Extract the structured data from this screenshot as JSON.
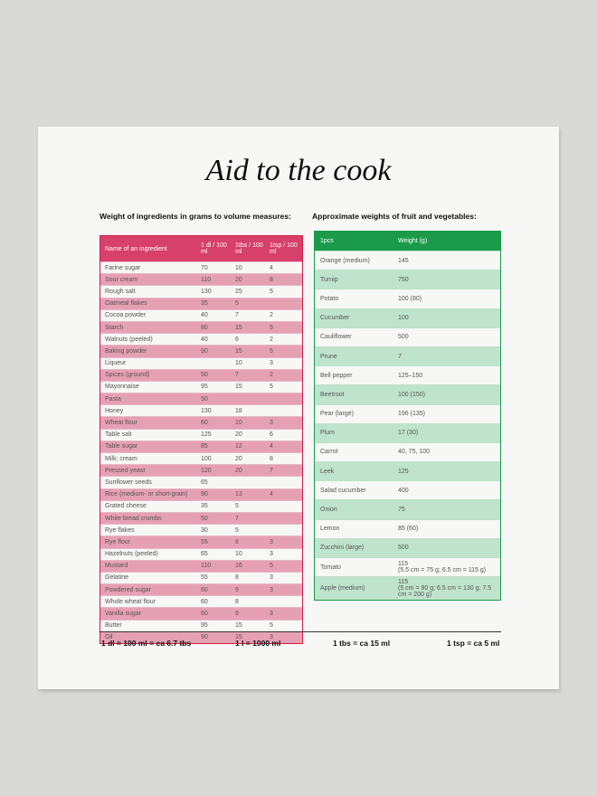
{
  "title": "Aid to the cook",
  "left": {
    "heading": "Weight of ingredients in grams to volume measures:",
    "columns": [
      "Name of an ingredient",
      "1 dl / 100 ml",
      "1tbs / 100 ml",
      "1tsp / 100 ml"
    ],
    "rows": [
      [
        "Farine sugar",
        "70",
        "10",
        "4"
      ],
      [
        "Sour cream",
        "110",
        "20",
        "8"
      ],
      [
        "Rough salt",
        "130",
        "25",
        "5"
      ],
      [
        "Oatmeal flakes",
        "35",
        "5",
        null
      ],
      [
        "Cocoa powder",
        "40",
        "7",
        "2"
      ],
      [
        "Starch",
        "80",
        "15",
        "5"
      ],
      [
        "Walnuts (peeled)",
        "40",
        "6",
        "2"
      ],
      [
        "Baking powder",
        "90",
        "15",
        "5"
      ],
      [
        "Liqueur",
        null,
        "10",
        "3"
      ],
      [
        "Spices (ground)",
        "50",
        "7",
        "2"
      ],
      [
        "Mayonnaise",
        "95",
        "15",
        "5"
      ],
      [
        "Pasta",
        "50",
        null,
        null
      ],
      [
        "Honey",
        "130",
        "18",
        null
      ],
      [
        "Wheat flour",
        "60",
        "10",
        "3"
      ],
      [
        "Table salt",
        "125",
        "20",
        "6"
      ],
      [
        "Table sugar",
        "85",
        "12",
        "4"
      ],
      [
        "Milk; cream",
        "100",
        "20",
        "8"
      ],
      [
        "Pressed yeast",
        "120",
        "20",
        "7"
      ],
      [
        "Sunflower seeds",
        "65",
        null,
        null
      ],
      [
        "Rice (medium- or short-grain)",
        "90",
        "13",
        "4"
      ],
      [
        "Grated cheese",
        "35",
        "5",
        null
      ],
      [
        "White bread crumbs",
        "50",
        "7",
        null
      ],
      [
        "Rye flakes",
        "30",
        "5",
        null
      ],
      [
        "Rye flour",
        "55",
        "8",
        "3"
      ],
      [
        "Hazelnuts (peeled)",
        "65",
        "10",
        "3"
      ],
      [
        "Mustard",
        "110",
        "16",
        "5"
      ],
      [
        "Gelatine",
        "55",
        "8",
        "3"
      ],
      [
        "Powdered sugar",
        "60",
        "9",
        "3"
      ],
      [
        "Whole wheat flour",
        "60",
        "8",
        null
      ],
      [
        "Vanilla sugar",
        "60",
        "9",
        "3"
      ],
      [
        "Butter",
        "95",
        "15",
        "5"
      ],
      [
        "Oil",
        "90",
        "15",
        "3"
      ]
    ]
  },
  "right": {
    "heading": "Approximate weights of fruit and vegetables:",
    "columns": [
      "1pcs",
      "Weight (g)"
    ],
    "rows": [
      {
        "name": "Orange (medium)",
        "weight": "145"
      },
      {
        "name": "Turnip",
        "weight": "750"
      },
      {
        "name": "Potato",
        "weight": "100 (80)"
      },
      {
        "name": "Cucumber",
        "weight": "100"
      },
      {
        "name": "Cauliflower",
        "weight": "500"
      },
      {
        "name": "Prune",
        "weight": "7"
      },
      {
        "name": "Bell pepper",
        "weight": "125–150"
      },
      {
        "name": "Beetroot",
        "weight": "100 (150)"
      },
      {
        "name": "Pear (large)",
        "weight": "196 (135)"
      },
      {
        "name": "Plum",
        "weight": "17 (30)"
      },
      {
        "name": "Carrot",
        "weight": "40, 75, 100"
      },
      {
        "name": "Leek",
        "weight": "125"
      },
      {
        "name": "Salad cucumber",
        "weight": "400"
      },
      {
        "name": "Onion",
        "weight": "75"
      },
      {
        "name": "Lemon",
        "weight": "85 (60)"
      },
      {
        "name": "Zucchini (large)",
        "weight": "500"
      },
      {
        "name": "Tomato",
        "weight": "115",
        "note": "(5.5 cm = 75 g; 6.5 cm = 115 g)"
      },
      {
        "name": "Apple (medium)",
        "weight": "115",
        "note": "(5 cm = 90 g; 6.5 cm = 130 g; 7.5 cm = 200 g)"
      }
    ]
  },
  "footer": [
    "1 dl = 100 ml = ca 6.7 tbs",
    "1 l = 1000 ml",
    "1 tbs = ca 15 ml",
    "1 tsp = ca 5 ml"
  ]
}
